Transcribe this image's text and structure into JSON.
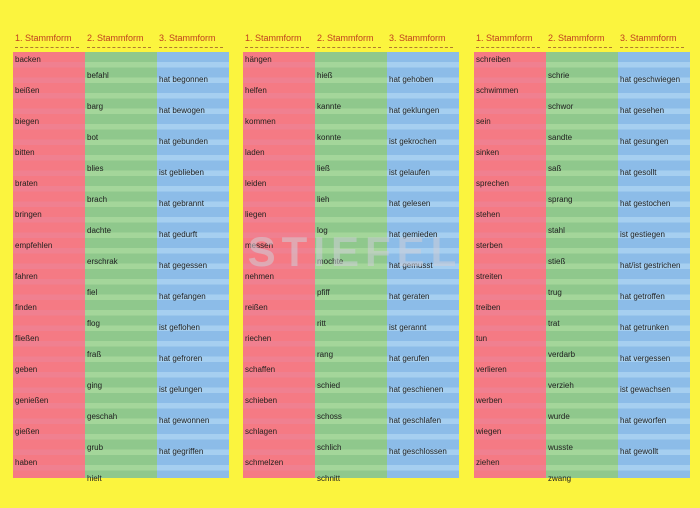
{
  "watermark": "STIEFEL",
  "headers": [
    "1. Stammform",
    "2. Stammform",
    "3. Stammform"
  ],
  "tables": [
    {
      "rows": [
        [
          "backen",
          "befahl",
          "hat begonnen"
        ],
        [
          "beißen",
          "barg",
          "hat bewogen"
        ],
        [
          "biegen",
          "bot",
          "hat gebunden"
        ],
        [
          "bitten",
          "blies",
          "ist geblieben"
        ],
        [
          "braten",
          "brach",
          "hat gebrannt"
        ],
        [
          "bringen",
          "dachte",
          "hat gedurft"
        ],
        [
          "empfehlen",
          "erschrak",
          "hat gegessen"
        ],
        [
          "fahren",
          "fiel",
          "hat gefangen"
        ],
        [
          "finden",
          "flog",
          "ist geflohen"
        ],
        [
          "fließen",
          "fraß",
          "hat gefroren"
        ],
        [
          "geben",
          "ging",
          "ist gelungen"
        ],
        [
          "genießen",
          "geschah",
          "hat gewonnen"
        ],
        [
          "gießen",
          "grub",
          "hat gegriffen"
        ],
        [
          "haben",
          "hielt",
          ""
        ]
      ]
    },
    {
      "rows": [
        [
          "hängen",
          "hieß",
          "hat gehoben"
        ],
        [
          "helfen",
          "kannte",
          "hat geklungen"
        ],
        [
          "kommen",
          "konnte",
          "ist gekrochen"
        ],
        [
          "laden",
          "ließ",
          "ist gelaufen"
        ],
        [
          "leiden",
          "lieh",
          "hat gelesen"
        ],
        [
          "liegen",
          "log",
          "hat gemieden"
        ],
        [
          "messen",
          "mochte",
          "hat gemusst"
        ],
        [
          "nehmen",
          "pfiff",
          "hat geraten"
        ],
        [
          "reißen",
          "ritt",
          "ist gerannt"
        ],
        [
          "riechen",
          "rang",
          "hat gerufen"
        ],
        [
          "schaffen",
          "schied",
          "hat geschienen"
        ],
        [
          "schieben",
          "schoss",
          "hat geschlafen"
        ],
        [
          "schlagen",
          "schlich",
          "hat geschlossen"
        ],
        [
          "schmelzen",
          "schnitt",
          ""
        ]
      ]
    },
    {
      "rows": [
        [
          "schreiben",
          "schrie",
          "hat geschwiegen"
        ],
        [
          "schwimmen",
          "schwor",
          "hat gesehen"
        ],
        [
          "sein",
          "sandte",
          "hat gesungen"
        ],
        [
          "sinken",
          "saß",
          "hat gesollt"
        ],
        [
          "sprechen",
          "sprang",
          "hat gestochen"
        ],
        [
          "stehen",
          "stahl",
          "ist gestiegen"
        ],
        [
          "sterben",
          "stieß",
          "hat/ist gestrichen"
        ],
        [
          "streiten",
          "trug",
          "hat getroffen"
        ],
        [
          "treiben",
          "trat",
          "hat getrunken"
        ],
        [
          "tun",
          "verdarb",
          "hat vergessen"
        ],
        [
          "verlieren",
          "verzieh",
          "ist gewachsen"
        ],
        [
          "werben",
          "wurde",
          "hat geworfen"
        ],
        [
          "wiegen",
          "wusste",
          "hat gewollt"
        ],
        [
          "ziehen",
          "zwang",
          ""
        ]
      ]
    }
  ]
}
